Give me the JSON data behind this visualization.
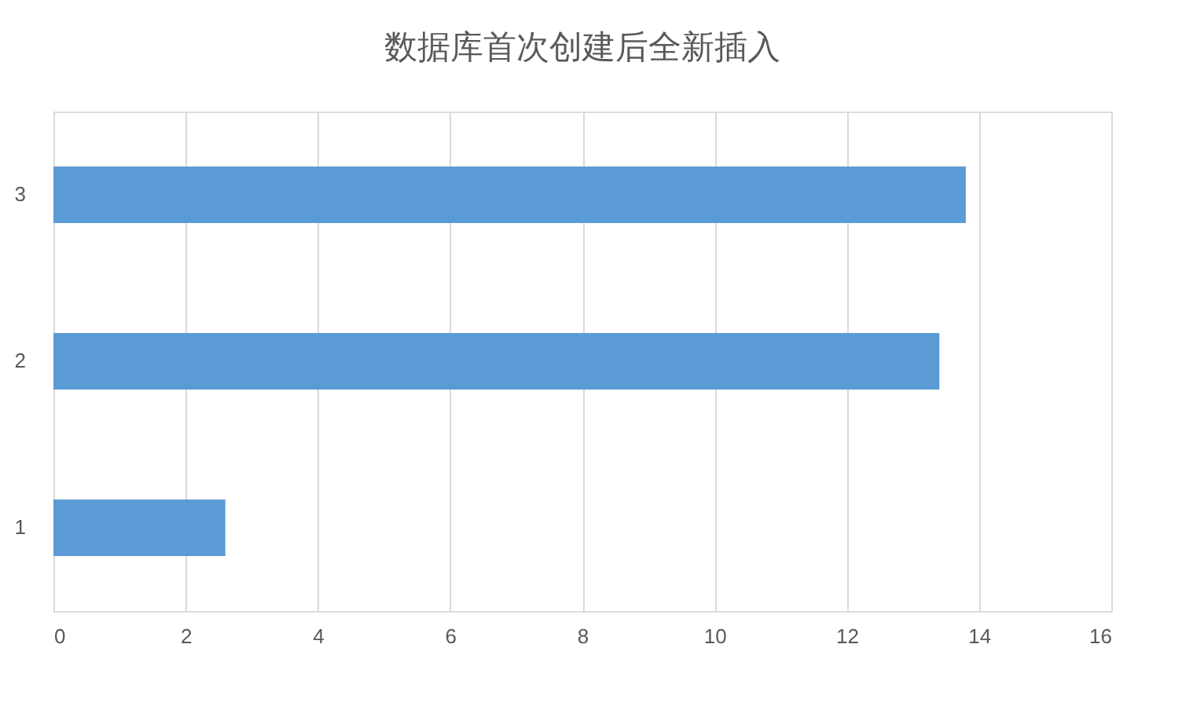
{
  "chart_data": {
    "type": "bar",
    "orientation": "horizontal",
    "title": "数据库首次创建后全新插入",
    "categories": [
      "3",
      "2",
      "1"
    ],
    "values": [
      13.8,
      13.4,
      2.6
    ],
    "color": "#5b9bd5",
    "xlim": [
      0,
      16
    ],
    "xticks": [
      0,
      2,
      4,
      6,
      8,
      10,
      12,
      14,
      16
    ],
    "grid": "x"
  }
}
